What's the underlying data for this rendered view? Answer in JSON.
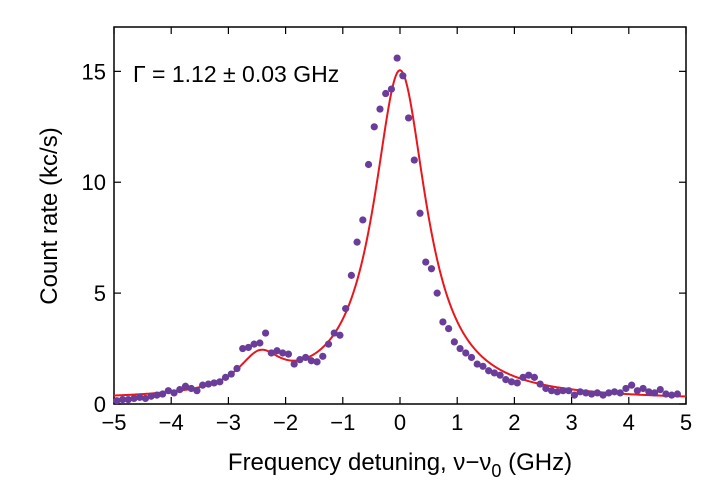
{
  "chart_data": {
    "type": "scatter",
    "title": "",
    "annotation": "Γ = 1.12 ± 0.03 GHz",
    "xlabel": {
      "text": "Frequency detuning, ν−ν",
      "subscript": "0",
      "suffix": " (GHz)"
    },
    "ylabel": "Count rate (kc/s)",
    "xlim": [
      -5,
      5
    ],
    "ylim": [
      0,
      17
    ],
    "xticks": [
      -5,
      -4,
      -3,
      -2,
      -1,
      0,
      1,
      2,
      3,
      4,
      5
    ],
    "xtick_labels": [
      "−5",
      "−4",
      "−3",
      "−2",
      "−1",
      "0",
      "1",
      "2",
      "3",
      "4",
      "5"
    ],
    "yticks": [
      0,
      5,
      10,
      15
    ],
    "ytick_labels": [
      "0",
      "5",
      "10",
      "15"
    ],
    "grid": false,
    "legend": "none",
    "series": [
      {
        "kind": "points",
        "color": "#6a3d9a",
        "x": [
          -4.95,
          -4.85,
          -4.75,
          -4.65,
          -4.55,
          -4.45,
          -4.35,
          -4.25,
          -4.15,
          -4.05,
          -3.95,
          -3.85,
          -3.75,
          -3.65,
          -3.55,
          -3.45,
          -3.35,
          -3.25,
          -3.15,
          -3.05,
          -2.95,
          -2.85,
          -2.75,
          -2.65,
          -2.55,
          -2.45,
          -2.35,
          -2.25,
          -2.15,
          -2.05,
          -1.95,
          -1.85,
          -1.75,
          -1.65,
          -1.55,
          -1.45,
          -1.35,
          -1.25,
          -1.15,
          -1.05,
          -0.95,
          -0.85,
          -0.75,
          -0.65,
          -0.55,
          -0.45,
          -0.35,
          -0.25,
          -0.15,
          -0.05,
          0.05,
          0.15,
          0.25,
          0.35,
          0.45,
          0.55,
          0.65,
          0.75,
          0.85,
          0.95,
          1.05,
          1.15,
          1.25,
          1.35,
          1.45,
          1.55,
          1.65,
          1.75,
          1.85,
          1.95,
          2.05,
          2.15,
          2.25,
          2.35,
          2.45,
          2.55,
          2.65,
          2.75,
          2.85,
          2.95,
          3.05,
          3.15,
          3.25,
          3.35,
          3.45,
          3.55,
          3.65,
          3.75,
          3.85,
          3.95,
          4.05,
          4.15,
          4.25,
          4.35,
          4.45,
          4.55,
          4.65,
          4.75,
          4.85
        ],
        "y": [
          0.15,
          0.2,
          0.2,
          0.25,
          0.3,
          0.25,
          0.35,
          0.4,
          0.45,
          0.6,
          0.5,
          0.65,
          0.8,
          0.7,
          0.6,
          0.85,
          0.9,
          0.95,
          1.0,
          1.2,
          1.35,
          1.6,
          2.5,
          2.55,
          2.7,
          2.75,
          3.2,
          2.3,
          2.4,
          2.3,
          2.25,
          1.8,
          2.0,
          2.1,
          1.95,
          1.9,
          2.15,
          2.7,
          3.2,
          3.1,
          4.3,
          5.8,
          7.3,
          8.3,
          10.8,
          12.5,
          13.3,
          14.0,
          14.2,
          15.6,
          14.8,
          12.9,
          11.0,
          8.6,
          6.4,
          6.1,
          5.0,
          3.7,
          3.4,
          2.8,
          2.5,
          2.3,
          2.1,
          1.8,
          1.7,
          1.5,
          1.4,
          1.3,
          1.1,
          1.0,
          0.95,
          1.2,
          1.3,
          1.2,
          0.9,
          0.7,
          0.6,
          0.55,
          0.6,
          0.6,
          0.4,
          0.55,
          0.5,
          0.45,
          0.5,
          0.4,
          0.5,
          0.55,
          0.5,
          0.7,
          0.85,
          0.6,
          0.7,
          0.55,
          0.5,
          0.65,
          0.45,
          0.4,
          0.45
        ]
      },
      {
        "kind": "fit",
        "color": "#e8171d",
        "model": "lorentzian",
        "peaks": [
          {
            "center": 0.0,
            "fwhm": 1.12,
            "height": 14.85
          },
          {
            "center": -2.45,
            "fwhm": 0.9,
            "height": 1.55
          }
        ],
        "baseline": 0.15
      }
    ]
  }
}
